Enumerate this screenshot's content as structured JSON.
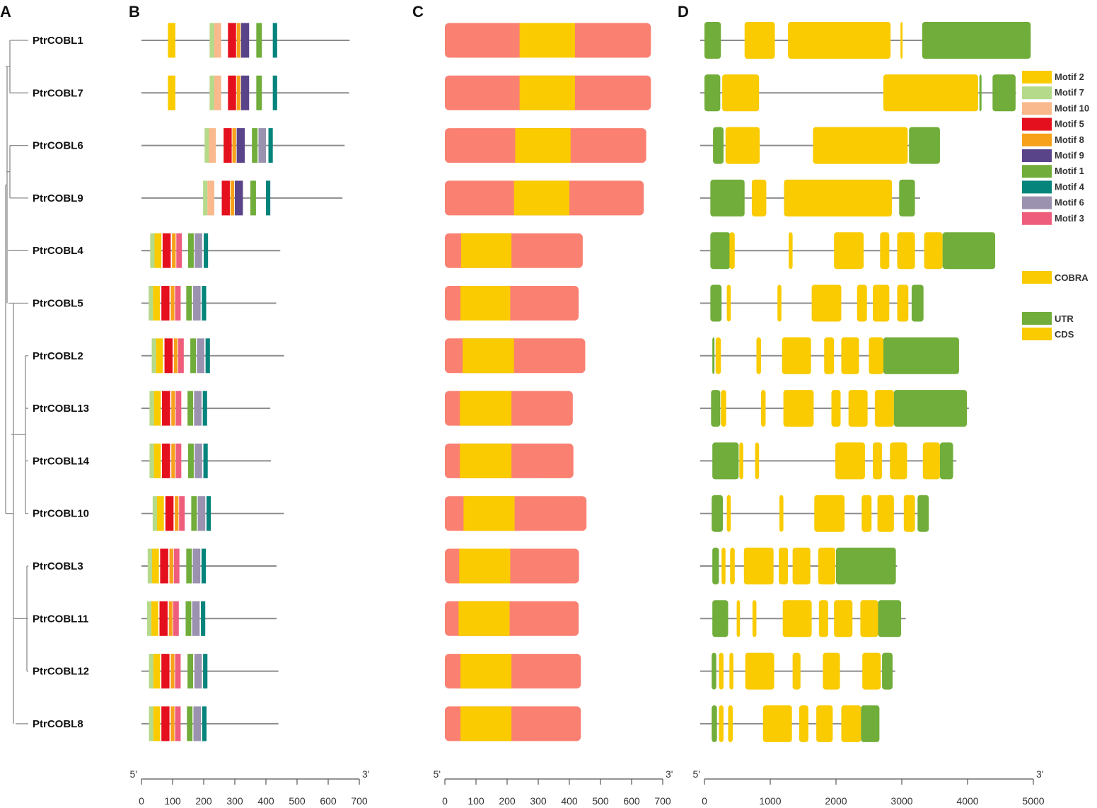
{
  "panels": [
    "A",
    "B",
    "C",
    "D"
  ],
  "genes": [
    "PtrCOBL1",
    "PtrCOBL7",
    "PtrCOBL6",
    "PtrCOBL9",
    "PtrCOBL4",
    "PtrCOBL5",
    "PtrCOBL2",
    "PtrCOBL13",
    "PtrCOBL14",
    "PtrCOBL10",
    "PtrCOBL3",
    "PtrCOBL11",
    "PtrCOBL12",
    "PtrCOBL8"
  ],
  "colors": {
    "motif2": "#F9CB00",
    "motif7": "#B5DA8A",
    "motif10": "#F9B98C",
    "motif5": "#E5101E",
    "motif8": "#F7A11A",
    "motif9": "#5A4489",
    "motif1": "#70AD3A",
    "motif4": "#05847C",
    "motif6": "#9B92B0",
    "motif3": "#EE5E7C",
    "protein": "#FA8072",
    "cobra": "#F9CB00",
    "utr": "#70AD3A",
    "cds": "#F9CB00",
    "line": "#8C8C8C"
  },
  "legend_motifs": [
    {
      "key": "motif2",
      "label": "Motif 2"
    },
    {
      "key": "motif7",
      "label": "Motif 7"
    },
    {
      "key": "motif10",
      "label": "Motif 10"
    },
    {
      "key": "motif5",
      "label": "Motif 5"
    },
    {
      "key": "motif8",
      "label": "Motif 8"
    },
    {
      "key": "motif9",
      "label": "Motif 9"
    },
    {
      "key": "motif1",
      "label": "Motif 1"
    },
    {
      "key": "motif4",
      "label": "Motif 4"
    },
    {
      "key": "motif6",
      "label": "Motif 6"
    },
    {
      "key": "motif3",
      "label": "Motif 3"
    }
  ],
  "legend_cobra": "COBRA",
  "legend_utr": "UTR",
  "legend_cds": "CDS",
  "scale_motif": {
    "start_label": "5'",
    "end_label": "3'",
    "ticks": [
      "0",
      "100",
      "200",
      "300",
      "400",
      "500",
      "600",
      "700"
    ],
    "max": 700
  },
  "scale_protein": {
    "start_label": "5'",
    "end_label": "3'",
    "ticks": [
      "0",
      "100",
      "200",
      "300",
      "400",
      "500",
      "600",
      "700"
    ],
    "max": 700
  },
  "scale_gene": {
    "start_label": "5'",
    "end_label": "3'",
    "ticks": [
      "0",
      "1000",
      "2000",
      "3000",
      "4000",
      "5000"
    ],
    "max": 5000
  },
  "protein_lengths": [
    662,
    662,
    647,
    639,
    443,
    430,
    451,
    411,
    413,
    455,
    431,
    430,
    437,
    437
  ],
  "cobra_domains": [
    [
      240,
      418
    ],
    [
      240,
      418
    ],
    [
      226,
      404
    ],
    [
      222,
      400
    ],
    [
      52,
      214
    ],
    [
      50,
      210
    ],
    [
      57,
      222
    ],
    [
      48,
      214
    ],
    [
      48,
      214
    ],
    [
      60,
      224
    ],
    [
      46,
      210
    ],
    [
      44,
      208
    ],
    [
      50,
      214
    ],
    [
      50,
      214
    ]
  ],
  "motif_lengths": [
    669,
    667,
    653,
    646,
    446,
    433,
    458,
    414,
    416,
    458,
    434,
    434,
    440,
    440
  ],
  "motifs": [
    [
      [
        "motif2",
        85,
        109
      ],
      [
        "motif7",
        219,
        234
      ],
      [
        "motif10",
        234,
        256
      ],
      [
        "motif5",
        278,
        304
      ],
      [
        "motif8",
        306,
        318
      ],
      [
        "motif9",
        320,
        346
      ],
      [
        "motif1",
        369,
        387
      ],
      [
        "motif4",
        422,
        436
      ]
    ],
    [
      [
        "motif2",
        85,
        109
      ],
      [
        "motif7",
        219,
        234
      ],
      [
        "motif10",
        234,
        256
      ],
      [
        "motif5",
        278,
        304
      ],
      [
        "motif8",
        306,
        318
      ],
      [
        "motif9",
        320,
        346
      ],
      [
        "motif1",
        369,
        387
      ],
      [
        "motif4",
        422,
        436
      ]
    ],
    [
      [
        "motif7",
        203,
        217
      ],
      [
        "motif10",
        217,
        239
      ],
      [
        "motif5",
        264,
        290
      ],
      [
        "motif8",
        292,
        304
      ],
      [
        "motif9",
        306,
        332
      ],
      [
        "motif1",
        355,
        373
      ],
      [
        "motif6",
        376,
        400
      ],
      [
        "motif4",
        408,
        422
      ]
    ],
    [
      [
        "motif7",
        198,
        212
      ],
      [
        "motif10",
        212,
        234
      ],
      [
        "motif5",
        258,
        284
      ],
      [
        "motif8",
        286,
        298
      ],
      [
        "motif9",
        300,
        326
      ],
      [
        "motif1",
        350,
        368
      ],
      [
        "motif4",
        400,
        414
      ]
    ],
    [
      [
        "motif7",
        28,
        42
      ],
      [
        "motif2",
        42,
        64
      ],
      [
        "motif5",
        68,
        94
      ],
      [
        "motif8",
        98,
        110
      ],
      [
        "motif3",
        112,
        130
      ],
      [
        "motif1",
        150,
        168
      ],
      [
        "motif6",
        171,
        195
      ],
      [
        "motif4",
        200,
        214
      ]
    ],
    [
      [
        "motif7",
        23,
        37
      ],
      [
        "motif2",
        37,
        59
      ],
      [
        "motif5",
        64,
        90
      ],
      [
        "motif8",
        94,
        106
      ],
      [
        "motif3",
        108,
        126
      ],
      [
        "motif1",
        144,
        162
      ],
      [
        "motif6",
        166,
        190
      ],
      [
        "motif4",
        194,
        208
      ]
    ],
    [
      [
        "motif7",
        33,
        47
      ],
      [
        "motif2",
        47,
        69
      ],
      [
        "motif5",
        74,
        100
      ],
      [
        "motif8",
        104,
        116
      ],
      [
        "motif3",
        118,
        136
      ],
      [
        "motif1",
        157,
        175
      ],
      [
        "motif6",
        178,
        202
      ],
      [
        "motif4",
        206,
        220
      ]
    ],
    [
      [
        "motif7",
        26,
        40
      ],
      [
        "motif2",
        40,
        62
      ],
      [
        "motif5",
        66,
        92
      ],
      [
        "motif8",
        96,
        108
      ],
      [
        "motif3",
        110,
        128
      ],
      [
        "motif1",
        148,
        166
      ],
      [
        "motif6",
        169,
        193
      ],
      [
        "motif4",
        197,
        211
      ]
    ],
    [
      [
        "motif7",
        26,
        40
      ],
      [
        "motif2",
        40,
        62
      ],
      [
        "motif5",
        66,
        92
      ],
      [
        "motif8",
        96,
        108
      ],
      [
        "motif3",
        110,
        128
      ],
      [
        "motif1",
        150,
        168
      ],
      [
        "motif6",
        171,
        195
      ],
      [
        "motif4",
        199,
        213
      ]
    ],
    [
      [
        "motif7",
        36,
        50
      ],
      [
        "motif2",
        50,
        72
      ],
      [
        "motif5",
        77,
        103
      ],
      [
        "motif8",
        107,
        119
      ],
      [
        "motif3",
        121,
        139
      ],
      [
        "motif1",
        160,
        178
      ],
      [
        "motif6",
        181,
        205
      ],
      [
        "motif4",
        209,
        223
      ]
    ],
    [
      [
        "motif7",
        20,
        34
      ],
      [
        "motif2",
        34,
        56
      ],
      [
        "motif5",
        60,
        86
      ],
      [
        "motif8",
        90,
        102
      ],
      [
        "motif3",
        104,
        122
      ],
      [
        "motif1",
        144,
        162
      ],
      [
        "motif6",
        165,
        189
      ],
      [
        "motif4",
        193,
        207
      ]
    ],
    [
      [
        "motif7",
        18,
        32
      ],
      [
        "motif2",
        32,
        54
      ],
      [
        "motif5",
        58,
        84
      ],
      [
        "motif8",
        88,
        100
      ],
      [
        "motif3",
        102,
        120
      ],
      [
        "motif1",
        142,
        160
      ],
      [
        "motif6",
        163,
        187
      ],
      [
        "motif4",
        191,
        205
      ]
    ],
    [
      [
        "motif7",
        24,
        38
      ],
      [
        "motif2",
        38,
        60
      ],
      [
        "motif5",
        64,
        90
      ],
      [
        "motif8",
        94,
        106
      ],
      [
        "motif3",
        108,
        126
      ],
      [
        "motif1",
        148,
        166
      ],
      [
        "motif6",
        170,
        194
      ],
      [
        "motif4",
        198,
        212
      ]
    ],
    [
      [
        "motif7",
        24,
        38
      ],
      [
        "motif2",
        38,
        60
      ],
      [
        "motif5",
        64,
        90
      ],
      [
        "motif8",
        94,
        106
      ],
      [
        "motif3",
        108,
        126
      ],
      [
        "motif1",
        146,
        164
      ],
      [
        "motif6",
        167,
        191
      ],
      [
        "motif4",
        195,
        209
      ]
    ]
  ],
  "gene_lengths": [
    4960,
    4740,
    3480,
    3280,
    4410,
    3290,
    3800,
    4020,
    3830,
    3370,
    2930,
    3060,
    2900,
    2640
  ],
  "gene_features": [
    [
      [
        "utr",
        0,
        250
      ],
      [
        "cds",
        610,
        1070
      ],
      [
        "cds",
        1270,
        2830
      ],
      [
        "cds",
        2980,
        3010
      ],
      [
        "utr",
        3310,
        4960
      ]
    ],
    [
      [
        "utr",
        0,
        240
      ],
      [
        "cds",
        270,
        830
      ],
      [
        "cds",
        2720,
        4160
      ],
      [
        "utr",
        4180,
        4210
      ],
      [
        "utr",
        4380,
        4730
      ]
    ],
    [
      [
        "utr",
        130,
        290
      ],
      [
        "cds",
        320,
        840
      ],
      [
        "cds",
        1650,
        3090
      ],
      [
        "utr",
        3110,
        3580
      ]
    ],
    [
      [
        "utr",
        90,
        610
      ],
      [
        "cds",
        720,
        940
      ],
      [
        "cds",
        1210,
        2850
      ],
      [
        "utr",
        2960,
        3200
      ]
    ],
    [
      [
        "utr",
        90,
        390
      ],
      [
        "cds",
        380,
        460
      ],
      [
        "cds",
        1280,
        1340
      ],
      [
        "cds",
        1970,
        2420
      ],
      [
        "cds",
        2670,
        2810
      ],
      [
        "cds",
        2930,
        3200
      ],
      [
        "cds",
        3340,
        3620
      ],
      [
        "utr",
        3620,
        4420
      ]
    ],
    [
      [
        "utr",
        90,
        260
      ],
      [
        "cds",
        340,
        400
      ],
      [
        "cds",
        1110,
        1170
      ],
      [
        "cds",
        1630,
        2080
      ],
      [
        "cds",
        2320,
        2470
      ],
      [
        "cds",
        2560,
        2810
      ],
      [
        "cds",
        2930,
        3100
      ],
      [
        "utr",
        3150,
        3330
      ]
    ],
    [
      [
        "utr",
        120,
        150
      ],
      [
        "cds",
        170,
        250
      ],
      [
        "cds",
        790,
        860
      ],
      [
        "cds",
        1180,
        1620
      ],
      [
        "cds",
        1820,
        1970
      ],
      [
        "cds",
        2080,
        2350
      ],
      [
        "cds",
        2500,
        2720
      ],
      [
        "utr",
        2720,
        3870
      ]
    ],
    [
      [
        "utr",
        100,
        240
      ],
      [
        "cds",
        250,
        330
      ],
      [
        "cds",
        860,
        930
      ],
      [
        "cds",
        1200,
        1660
      ],
      [
        "cds",
        1930,
        2070
      ],
      [
        "cds",
        2190,
        2480
      ],
      [
        "cds",
        2590,
        2880
      ],
      [
        "utr",
        2880,
        3990
      ]
    ],
    [
      [
        "utr",
        120,
        520
      ],
      [
        "cds",
        530,
        590
      ],
      [
        "cds",
        770,
        830
      ],
      [
        "cds",
        1990,
        2440
      ],
      [
        "cds",
        2560,
        2700
      ],
      [
        "cds",
        2820,
        3080
      ],
      [
        "cds",
        3320,
        3580
      ],
      [
        "utr",
        3580,
        3780
      ]
    ],
    [
      [
        "utr",
        110,
        280
      ],
      [
        "cds",
        340,
        400
      ],
      [
        "cds",
        1140,
        1200
      ],
      [
        "cds",
        1670,
        2130
      ],
      [
        "cds",
        2390,
        2540
      ],
      [
        "cds",
        2630,
        2880
      ],
      [
        "cds",
        3030,
        3200
      ],
      [
        "utr",
        3240,
        3410
      ]
    ],
    [
      [
        "utr",
        120,
        220
      ],
      [
        "cds",
        260,
        320
      ],
      [
        "cds",
        390,
        460
      ],
      [
        "cds",
        600,
        1050
      ],
      [
        "cds",
        1130,
        1270
      ],
      [
        "cds",
        1340,
        1610
      ],
      [
        "cds",
        1730,
        1990
      ],
      [
        "utr",
        2000,
        2910
      ]
    ],
    [
      [
        "utr",
        120,
        360
      ],
      [
        "cds",
        490,
        540
      ],
      [
        "cds",
        730,
        790
      ],
      [
        "cds",
        1190,
        1630
      ],
      [
        "cds",
        1740,
        1880
      ],
      [
        "cds",
        1970,
        2250
      ],
      [
        "cds",
        2370,
        2640
      ],
      [
        "utr",
        2640,
        2990
      ]
    ],
    [
      [
        "utr",
        110,
        180
      ],
      [
        "cds",
        220,
        290
      ],
      [
        "cds",
        380,
        440
      ],
      [
        "cds",
        620,
        1060
      ],
      [
        "cds",
        1340,
        1460
      ],
      [
        "cds",
        1800,
        2060
      ],
      [
        "cds",
        2400,
        2680
      ],
      [
        "utr",
        2700,
        2860
      ]
    ],
    [
      [
        "utr",
        110,
        190
      ],
      [
        "cds",
        220,
        290
      ],
      [
        "cds",
        360,
        430
      ],
      [
        "cds",
        890,
        1330
      ],
      [
        "cds",
        1440,
        1580
      ],
      [
        "cds",
        1700,
        1950
      ],
      [
        "cds",
        2080,
        2380
      ],
      [
        "utr",
        2380,
        2660
      ]
    ]
  ],
  "tree": {
    "root_x": 10,
    "clades": [
      {
        "leaf_rows": [
          0,
          1
        ],
        "join_x": 14,
        "parent_x": 10
      },
      {
        "leaf_rows": [
          2,
          3
        ],
        "join_x": 14,
        "parent_x": 10
      },
      {
        "leaf_rows": [
          4
        ],
        "join_x": 14
      },
      {
        "leaf_rows": [
          5
        ],
        "join_x": 14
      },
      {
        "leaf_rows": [
          6,
          7,
          8,
          9
        ],
        "join_x": 36
      },
      {
        "leaf_rows": [
          10,
          11,
          12
        ],
        "join_x": 38
      },
      {
        "leaf_rows": [
          13
        ],
        "join_x": 28
      }
    ]
  }
}
